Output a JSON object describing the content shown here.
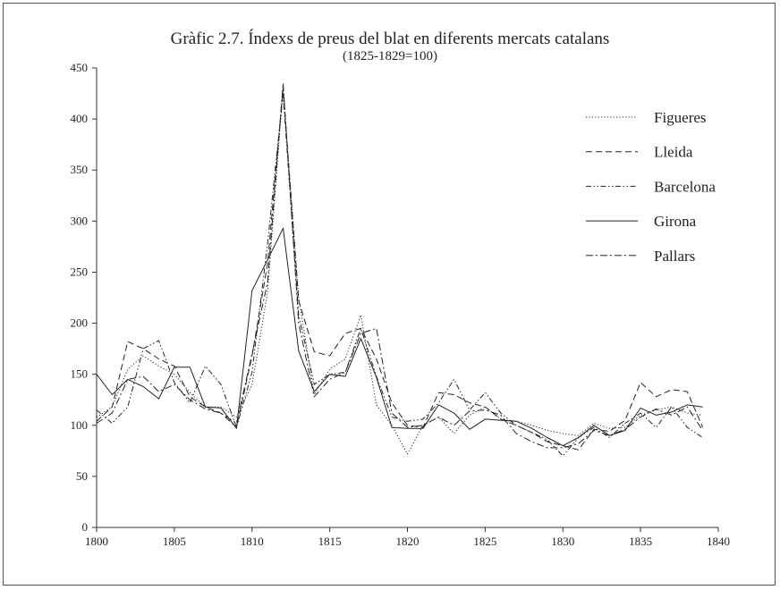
{
  "chart_data": {
    "type": "line",
    "title": "Gràfic 2.7. Índexs de preus del blat en diferents mercats catalans",
    "subtitle": "(1825-1829=100)",
    "xlabel": "",
    "ylabel": "",
    "xlim": [
      1800,
      1840
    ],
    "ylim": [
      0,
      450
    ],
    "xticks": [
      1800,
      1805,
      1810,
      1815,
      1820,
      1825,
      1830,
      1835,
      1840
    ],
    "yticks": [
      0,
      50,
      100,
      150,
      200,
      250,
      300,
      350,
      400,
      450
    ],
    "grid": false,
    "legend_position": "top-right",
    "x": [
      1800,
      1801,
      1802,
      1803,
      1804,
      1805,
      1806,
      1807,
      1808,
      1809,
      1810,
      1811,
      1812,
      1813,
      1814,
      1815,
      1816,
      1817,
      1818,
      1819,
      1820,
      1821,
      1822,
      1823,
      1824,
      1825,
      1826,
      1827,
      1828,
      1829,
      1830,
      1831,
      1832,
      1833,
      1834,
      1835,
      1836,
      1837,
      1838,
      1839
    ],
    "series": [
      {
        "name": "Figueres",
        "style": "dotted",
        "values": [
          108,
          118,
          155,
          168,
          158,
          150,
          132,
          118,
          118,
          108,
          140,
          230,
          430,
          225,
          130,
          155,
          165,
          208,
          120,
          100,
          72,
          100,
          108,
          92,
          110,
          118,
          106,
          104,
          100,
          95,
          92,
          90,
          102,
          97,
          98,
          110,
          115,
          118,
          112,
          110
        ]
      },
      {
        "name": "Lleida",
        "style": "dashed",
        "values": [
          104,
          118,
          182,
          175,
          165,
          158,
          128,
          118,
          112,
          98,
          168,
          258,
          430,
          222,
          172,
          168,
          190,
          195,
          165,
          122,
          100,
          98,
          132,
          130,
          122,
          118,
          106,
          100,
          93,
          84,
          80,
          76,
          96,
          94,
          105,
          142,
          128,
          135,
          133,
          98
        ]
      },
      {
        "name": "Barcelona",
        "style": "dashdotdot",
        "values": [
          115,
          102,
          118,
          175,
          183,
          142,
          122,
          158,
          140,
          98,
          152,
          278,
          425,
          208,
          140,
          150,
          152,
          195,
          148,
          108,
          104,
          106,
          122,
          145,
          115,
          132,
          112,
          100,
          93,
          86,
          70,
          88,
          98,
          88,
          102,
          112,
          98,
          118,
          98,
          88
        ]
      },
      {
        "name": "Girona",
        "style": "solid",
        "values": [
          150,
          130,
          145,
          138,
          126,
          157,
          157,
          118,
          117,
          97,
          232,
          262,
          293,
          173,
          133,
          150,
          148,
          185,
          147,
          98,
          97,
          97,
          120,
          112,
          96,
          106,
          105,
          104,
          97,
          88,
          80,
          88,
          100,
          90,
          95,
          117,
          110,
          113,
          120,
          118
        ]
      },
      {
        "name": "Pallars",
        "style": "dashdot",
        "values": [
          102,
          112,
          145,
          148,
          133,
          140,
          125,
          116,
          112,
          102,
          170,
          240,
          435,
          200,
          128,
          145,
          152,
          190,
          195,
          112,
          98,
          100,
          108,
          100,
          114,
          115,
          110,
          92,
          84,
          78,
          78,
          82,
          95,
          90,
          96,
          108,
          116,
          110,
          118,
          95
        ]
      }
    ]
  }
}
